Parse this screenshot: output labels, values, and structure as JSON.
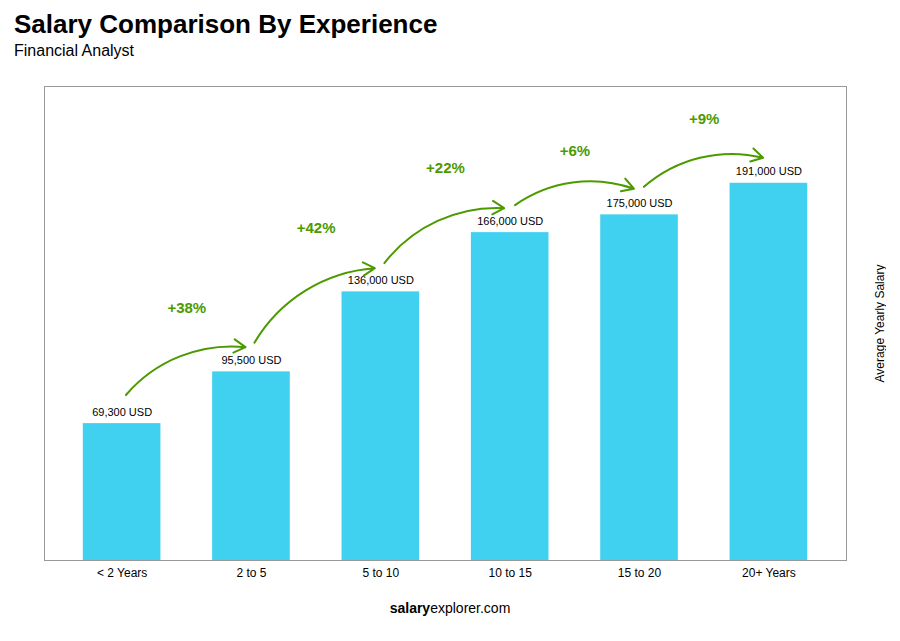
{
  "chart_data": {
    "type": "bar",
    "title": "Salary Comparison By Experience",
    "subtitle": "Financial Analyst",
    "categories": [
      "< 2 Years",
      "2 to 5",
      "5 to 10",
      "10 to 15",
      "15 to 20",
      "20+ Years"
    ],
    "values": [
      69300,
      95500,
      136000,
      166000,
      175000,
      191000
    ],
    "value_labels": [
      "69,300 USD",
      "95,500 USD",
      "136,000 USD",
      "166,000 USD",
      "175,000 USD",
      "191,000 USD"
    ],
    "data_labels": true,
    "annotations": [
      "+38%",
      "+42%",
      "+22%",
      "+6%",
      "+9%"
    ],
    "ylabel": "Average Yearly Salary",
    "footer_bold": "salary",
    "footer_normal": "explorer.com",
    "color": "#40d0f0",
    "ylim": [
      0,
      240000
    ],
    "tick_labels": "x",
    "grid": false
  }
}
